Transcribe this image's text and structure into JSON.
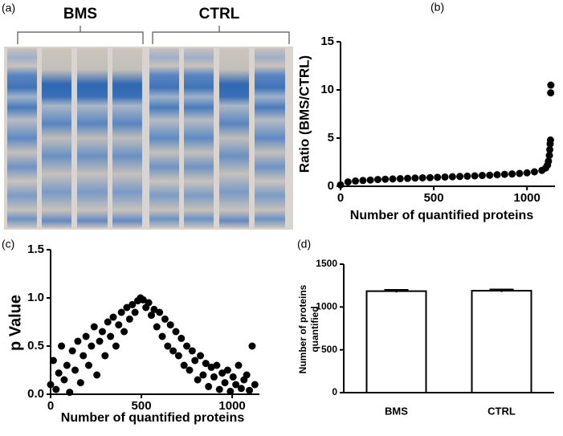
{
  "gel": {
    "label": "(a)",
    "groups": [
      "BMS",
      "CTRL"
    ]
  },
  "chart_data": [
    {
      "type": "scatter",
      "label": "(b)",
      "xlabel": "Number of quantified proteins",
      "ylabel": "Ratio (BMS/CTRL)",
      "color": "#000000",
      "x": [
        0,
        40,
        80,
        120,
        160,
        200,
        240,
        280,
        320,
        360,
        400,
        440,
        480,
        520,
        560,
        600,
        640,
        680,
        720,
        760,
        800,
        840,
        880,
        920,
        960,
        1000,
        1040,
        1080,
        1100,
        1110,
        1115,
        1120,
        1122,
        1124,
        1126,
        1127,
        1128
      ],
      "values": [
        0.15,
        0.45,
        0.55,
        0.6,
        0.65,
        0.7,
        0.73,
        0.76,
        0.79,
        0.82,
        0.85,
        0.88,
        0.9,
        0.93,
        0.96,
        0.99,
        1.02,
        1.05,
        1.08,
        1.12,
        1.15,
        1.2,
        1.24,
        1.28,
        1.33,
        1.4,
        1.5,
        1.65,
        1.9,
        2.2,
        2.6,
        3.2,
        3.8,
        4.4,
        4.8,
        9.7,
        10.5
      ],
      "xlim": [
        0,
        1150
      ],
      "xticks": [
        0,
        500,
        1000
      ],
      "ylim": [
        0,
        15
      ],
      "yticks": [
        0,
        5,
        10,
        15
      ]
    },
    {
      "type": "scatter",
      "label": "(c)",
      "xlabel": "Number of quantified proteins",
      "ylabel": "p Value",
      "color": "#000000",
      "x": [
        0,
        15,
        30,
        45,
        60,
        75,
        90,
        105,
        120,
        135,
        150,
        165,
        180,
        195,
        210,
        225,
        240,
        255,
        270,
        285,
        300,
        315,
        330,
        345,
        360,
        375,
        390,
        405,
        420,
        435,
        450,
        465,
        480,
        495,
        510,
        525,
        540,
        555,
        570,
        585,
        600,
        615,
        630,
        645,
        660,
        675,
        690,
        705,
        720,
        735,
        750,
        765,
        780,
        795,
        810,
        825,
        840,
        855,
        870,
        885,
        900,
        915,
        930,
        945,
        960,
        975,
        990,
        1005,
        1020,
        1035,
        1050,
        1065,
        1080,
        1095,
        1110,
        1125
      ],
      "values": [
        0.1,
        0.35,
        0.05,
        0.22,
        0.5,
        0.15,
        0.3,
        0.02,
        0.45,
        0.25,
        0.55,
        0.12,
        0.4,
        0.6,
        0.3,
        0.5,
        0.7,
        0.2,
        0.55,
        0.65,
        0.4,
        0.75,
        0.6,
        0.8,
        0.5,
        0.72,
        0.85,
        0.65,
        0.9,
        0.78,
        0.93,
        0.85,
        0.97,
        1.0,
        0.98,
        0.9,
        0.95,
        0.82,
        0.88,
        0.7,
        0.85,
        0.6,
        0.78,
        0.5,
        0.72,
        0.45,
        0.65,
        0.4,
        0.58,
        0.3,
        0.5,
        0.25,
        0.45,
        0.35,
        0.15,
        0.4,
        0.2,
        0.32,
        0.08,
        0.28,
        0.18,
        0.3,
        0.05,
        0.22,
        0.12,
        0.25,
        0.03,
        0.18,
        0.1,
        0.3,
        0.06,
        0.15,
        0.2,
        0.04,
        0.5,
        0.1
      ],
      "xlim": [
        0,
        1150
      ],
      "xticks": [
        0,
        500,
        1000
      ],
      "ylim": [
        0,
        1.5
      ],
      "yticks": [
        {
          "value": 0,
          "label": "0.0"
        },
        {
          "value": 0.5,
          "label": "0.5"
        },
        {
          "value": 1,
          "label": "1.0"
        },
        {
          "value": 1.5,
          "label": "1.5"
        }
      ]
    },
    {
      "type": "bar",
      "label": "(d)",
      "ylabel": [
        "Number of proteins",
        "quantified"
      ],
      "color": "#ffffff",
      "categories": [
        "BMS",
        "CTRL"
      ],
      "values": [
        1185,
        1190
      ],
      "errors": [
        15,
        15
      ],
      "ylim": [
        0,
        1500
      ],
      "yticks": [
        0,
        500,
        1000,
        1500
      ]
    }
  ]
}
